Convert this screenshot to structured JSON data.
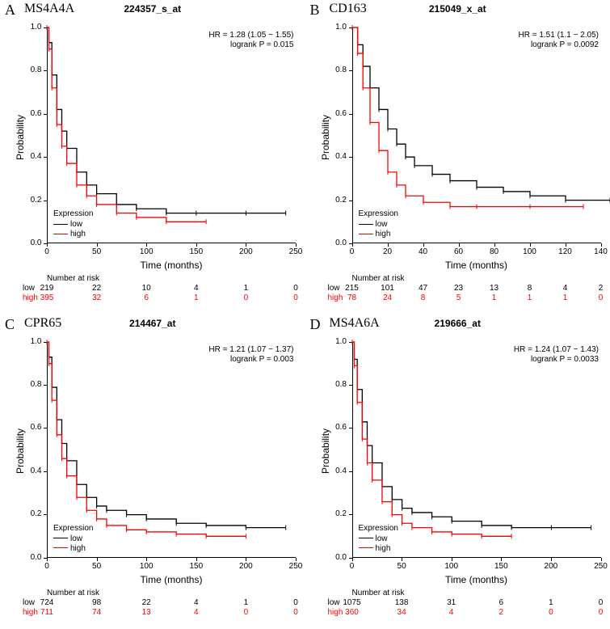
{
  "chart_type": "kaplan-meier survival curves (2x2 grid)",
  "legend_title": "Expression",
  "legend_items": [
    {
      "label": "low",
      "color": "#000000"
    },
    {
      "label": "high",
      "color": "#ff0000"
    }
  ],
  "y_axis_label": "Probability",
  "x_axis_label": "Time (months)",
  "risk_header": "Number at risk",
  "colors": {
    "low": "#000000",
    "high": "#ff0000",
    "background": "#ffffff",
    "axis": "#000000"
  },
  "font_sizes": {
    "panel_letter": 18,
    "gene_name": 16,
    "probe_title": 12,
    "axis_label": 12,
    "tick": 10,
    "stats": 10,
    "legend": 10,
    "risk": 10
  },
  "panels": {
    "A": {
      "letter": "A",
      "gene": "MS4A4A",
      "probe": "224357_s_at",
      "hr_text": "HR = 1.28 (1.05 − 1.55)",
      "p_text": "logrank P = 0.015",
      "xlim": [
        0,
        250
      ],
      "x_ticks": [
        0,
        50,
        100,
        150,
        200,
        250
      ],
      "ylim": [
        0,
        1.0
      ],
      "y_ticks": [
        0.0,
        0.2,
        0.4,
        0.6,
        0.8,
        1.0
      ],
      "series": {
        "low": {
          "color": "#000000",
          "points": [
            [
              0,
              1.0
            ],
            [
              2,
              0.93
            ],
            [
              5,
              0.78
            ],
            [
              10,
              0.62
            ],
            [
              15,
              0.52
            ],
            [
              20,
              0.44
            ],
            [
              30,
              0.33
            ],
            [
              40,
              0.27
            ],
            [
              50,
              0.23
            ],
            [
              70,
              0.18
            ],
            [
              90,
              0.16
            ],
            [
              120,
              0.14
            ],
            [
              150,
              0.14
            ],
            [
              200,
              0.14
            ],
            [
              240,
              0.14
            ]
          ]
        },
        "high": {
          "color": "#ff0000",
          "points": [
            [
              0,
              1.0
            ],
            [
              2,
              0.9
            ],
            [
              5,
              0.72
            ],
            [
              10,
              0.55
            ],
            [
              15,
              0.45
            ],
            [
              20,
              0.37
            ],
            [
              30,
              0.27
            ],
            [
              40,
              0.22
            ],
            [
              50,
              0.18
            ],
            [
              70,
              0.14
            ],
            [
              90,
              0.12
            ],
            [
              120,
              0.1
            ],
            [
              160,
              0.1
            ]
          ]
        }
      },
      "risk": {
        "low": {
          "color": "#000000",
          "label": "low",
          "values": [
            219,
            22,
            10,
            4,
            1,
            0
          ]
        },
        "high": {
          "color": "#ff0000",
          "label": "high",
          "values": [
            395,
            32,
            6,
            1,
            0,
            0
          ]
        }
      }
    },
    "B": {
      "letter": "B",
      "gene": "CD163",
      "probe": "215049_x_at",
      "hr_text": "HR = 1.51 (1.1 − 2.05)",
      "p_text": "logrank P = 0.0092",
      "xlim": [
        0,
        140
      ],
      "x_ticks": [
        0,
        20,
        40,
        60,
        80,
        100,
        120,
        140
      ],
      "ylim": [
        0,
        1.0
      ],
      "y_ticks": [
        0.0,
        0.2,
        0.4,
        0.6,
        0.8,
        1.0
      ],
      "series": {
        "low": {
          "color": "#000000",
          "points": [
            [
              0,
              1.0
            ],
            [
              3,
              0.92
            ],
            [
              6,
              0.82
            ],
            [
              10,
              0.72
            ],
            [
              15,
              0.62
            ],
            [
              20,
              0.53
            ],
            [
              25,
              0.46
            ],
            [
              30,
              0.4
            ],
            [
              35,
              0.36
            ],
            [
              45,
              0.32
            ],
            [
              55,
              0.29
            ],
            [
              70,
              0.26
            ],
            [
              85,
              0.24
            ],
            [
              100,
              0.22
            ],
            [
              120,
              0.2
            ],
            [
              145,
              0.2
            ]
          ]
        },
        "high": {
          "color": "#ff0000",
          "points": [
            [
              0,
              1.0
            ],
            [
              3,
              0.88
            ],
            [
              6,
              0.72
            ],
            [
              10,
              0.56
            ],
            [
              15,
              0.43
            ],
            [
              20,
              0.33
            ],
            [
              25,
              0.27
            ],
            [
              30,
              0.22
            ],
            [
              40,
              0.19
            ],
            [
              55,
              0.17
            ],
            [
              70,
              0.17
            ],
            [
              100,
              0.17
            ],
            [
              130,
              0.17
            ]
          ]
        }
      },
      "risk": {
        "low": {
          "color": "#000000",
          "label": "low",
          "values": [
            215,
            101,
            47,
            23,
            13,
            8,
            4,
            2
          ]
        },
        "high": {
          "color": "#ff0000",
          "label": "high",
          "values": [
            78,
            24,
            8,
            5,
            1,
            1,
            1,
            0
          ]
        }
      }
    },
    "C": {
      "letter": "C",
      "gene": "CPR65",
      "probe": "214467_at",
      "hr_text": "HR = 1.21 (1.07 − 1.37)",
      "p_text": "logrank P = 0.003",
      "xlim": [
        0,
        250
      ],
      "x_ticks": [
        0,
        50,
        100,
        150,
        200,
        250
      ],
      "ylim": [
        0,
        1.0
      ],
      "y_ticks": [
        0.0,
        0.2,
        0.4,
        0.6,
        0.8,
        1.0
      ],
      "series": {
        "low": {
          "color": "#000000",
          "points": [
            [
              0,
              1.0
            ],
            [
              2,
              0.93
            ],
            [
              5,
              0.79
            ],
            [
              10,
              0.64
            ],
            [
              15,
              0.53
            ],
            [
              20,
              0.45
            ],
            [
              30,
              0.34
            ],
            [
              40,
              0.28
            ],
            [
              50,
              0.24
            ],
            [
              60,
              0.22
            ],
            [
              80,
              0.2
            ],
            [
              100,
              0.18
            ],
            [
              130,
              0.16
            ],
            [
              160,
              0.15
            ],
            [
              200,
              0.14
            ],
            [
              240,
              0.14
            ]
          ]
        },
        "high": {
          "color": "#ff0000",
          "points": [
            [
              0,
              1.0
            ],
            [
              2,
              0.9
            ],
            [
              5,
              0.73
            ],
            [
              10,
              0.57
            ],
            [
              15,
              0.46
            ],
            [
              20,
              0.38
            ],
            [
              30,
              0.28
            ],
            [
              40,
              0.22
            ],
            [
              50,
              0.18
            ],
            [
              60,
              0.15
            ],
            [
              80,
              0.13
            ],
            [
              100,
              0.12
            ],
            [
              130,
              0.11
            ],
            [
              160,
              0.1
            ],
            [
              200,
              0.1
            ]
          ]
        }
      },
      "risk": {
        "low": {
          "color": "#000000",
          "label": "low",
          "values": [
            724,
            98,
            22,
            4,
            1,
            0
          ]
        },
        "high": {
          "color": "#ff0000",
          "label": "high",
          "values": [
            711,
            74,
            13,
            4,
            0,
            0
          ]
        }
      }
    },
    "D": {
      "letter": "D",
      "gene": "MS4A6A",
      "probe": "219666_at",
      "hr_text": "HR = 1.24 (1.07 − 1.43)",
      "p_text": "logrank P = 0.0033",
      "xlim": [
        0,
        250
      ],
      "x_ticks": [
        0,
        50,
        100,
        150,
        200,
        250
      ],
      "ylim": [
        0,
        1.0
      ],
      "y_ticks": [
        0.0,
        0.2,
        0.4,
        0.6,
        0.8,
        1.0
      ],
      "series": {
        "low": {
          "color": "#000000",
          "points": [
            [
              0,
              1.0
            ],
            [
              2,
              0.92
            ],
            [
              5,
              0.78
            ],
            [
              10,
              0.63
            ],
            [
              15,
              0.52
            ],
            [
              20,
              0.44
            ],
            [
              30,
              0.33
            ],
            [
              40,
              0.27
            ],
            [
              50,
              0.23
            ],
            [
              60,
              0.21
            ],
            [
              80,
              0.19
            ],
            [
              100,
              0.17
            ],
            [
              130,
              0.15
            ],
            [
              160,
              0.14
            ],
            [
              200,
              0.14
            ],
            [
              240,
              0.14
            ]
          ]
        },
        "high": {
          "color": "#ff0000",
          "points": [
            [
              0,
              1.0
            ],
            [
              2,
              0.89
            ],
            [
              5,
              0.72
            ],
            [
              10,
              0.55
            ],
            [
              15,
              0.44
            ],
            [
              20,
              0.36
            ],
            [
              30,
              0.26
            ],
            [
              40,
              0.2
            ],
            [
              50,
              0.16
            ],
            [
              60,
              0.14
            ],
            [
              80,
              0.12
            ],
            [
              100,
              0.11
            ],
            [
              130,
              0.1
            ],
            [
              160,
              0.1
            ]
          ]
        }
      },
      "risk": {
        "low": {
          "color": "#000000",
          "label": "low",
          "values": [
            1075,
            138,
            31,
            6,
            1,
            0
          ]
        },
        "high": {
          "color": "#ff0000",
          "label": "high",
          "values": [
            360,
            34,
            4,
            2,
            0,
            0
          ]
        }
      }
    }
  }
}
